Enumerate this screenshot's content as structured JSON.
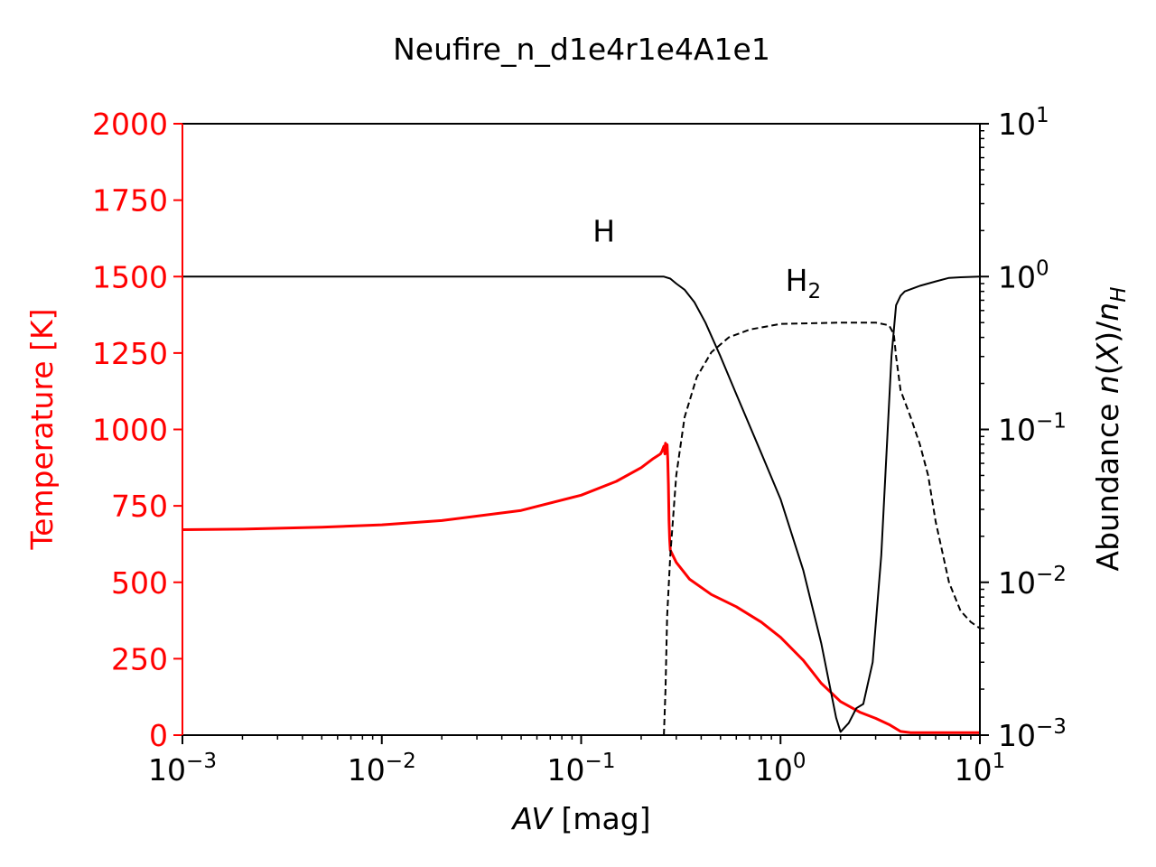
{
  "chart_data": {
    "type": "line",
    "title": "Neufire_n_d1e4r1e4A1e1",
    "xlabel": "AV [mag]",
    "x_scale": "log",
    "xlim": [
      0.001,
      10
    ],
    "x_ticks": [
      "10^-3",
      "10^-2",
      "10^-1",
      "10^0",
      "10^1"
    ],
    "y_left": {
      "label": "Temperature [K]",
      "color": "#ff0000",
      "ylim": [
        0,
        2000
      ],
      "ticks": [
        "0",
        "250",
        "500",
        "750",
        "1000",
        "1250",
        "1500",
        "1750",
        "2000"
      ]
    },
    "y_right": {
      "label": "Abundance n(X)/n_H",
      "scale": "log",
      "ylim": [
        0.001,
        10
      ],
      "ticks": [
        "10^-3",
        "10^-2",
        "10^-1",
        "10^0",
        "10^1"
      ]
    },
    "annotations": [
      {
        "text": "H",
        "x": 0.13,
        "y_right": 2.0
      },
      {
        "text": "H2",
        "x": 1.3,
        "y_right": 0.95
      }
    ],
    "series": [
      {
        "axis": "left",
        "color": "#ff0000",
        "style": "solid",
        "x": [
          0.001,
          0.002,
          0.005,
          0.01,
          0.02,
          0.05,
          0.1,
          0.15,
          0.2,
          0.23,
          0.25,
          0.255,
          0.26,
          0.263,
          0.265,
          0.267,
          0.27,
          0.272,
          0.274,
          0.276,
          0.278,
          0.28,
          0.3,
          0.35,
          0.45,
          0.6,
          0.8,
          1.0,
          1.3,
          1.6,
          2.0,
          2.5,
          3.0,
          3.5,
          4.0,
          4.5,
          5.0,
          7.0,
          10.0
        ],
        "y": [
          672,
          674,
          680,
          688,
          702,
          735,
          785,
          830,
          875,
          905,
          920,
          930,
          945,
          920,
          955,
          930,
          950,
          900,
          820,
          700,
          640,
          605,
          565,
          510,
          460,
          420,
          370,
          320,
          245,
          170,
          110,
          75,
          55,
          35,
          12,
          8,
          8,
          8,
          8
        ]
      },
      {
        "axis": "right",
        "color": "#000000",
        "style": "solid",
        "x": [
          0.001,
          0.01,
          0.1,
          0.2,
          0.26,
          0.28,
          0.3,
          0.33,
          0.37,
          0.42,
          0.5,
          0.6,
          0.8,
          1.0,
          1.3,
          1.6,
          1.9,
          2.0,
          2.2,
          2.4,
          2.6,
          2.9,
          3.2,
          3.4,
          3.6,
          3.8,
          4.0,
          4.2,
          5.0,
          6.0,
          7.0,
          8.0,
          10.0
        ],
        "y": [
          1.0,
          1.0,
          1.0,
          1.0,
          0.999,
          0.97,
          0.9,
          0.82,
          0.68,
          0.5,
          0.3,
          0.17,
          0.07,
          0.035,
          0.012,
          0.004,
          0.0013,
          0.00105,
          0.0012,
          0.0015,
          0.0016,
          0.003,
          0.015,
          0.07,
          0.3,
          0.65,
          0.75,
          0.8,
          0.87,
          0.93,
          0.98,
          0.99,
          1.0
        ]
      },
      {
        "axis": "right",
        "color": "#000000",
        "style": "dashed",
        "x": [
          0.26,
          0.265,
          0.27,
          0.28,
          0.3,
          0.33,
          0.38,
          0.45,
          0.55,
          0.7,
          1.0,
          2.0,
          3.0,
          3.5,
          3.7,
          3.8,
          4.0,
          4.5,
          5.0,
          5.5,
          6.0,
          7.0,
          8.0,
          9.0,
          10.0
        ],
        "y": [
          0.001,
          0.002,
          0.006,
          0.015,
          0.05,
          0.12,
          0.22,
          0.32,
          0.4,
          0.45,
          0.49,
          0.5,
          0.5,
          0.48,
          0.42,
          0.3,
          0.18,
          0.12,
          0.08,
          0.05,
          0.025,
          0.01,
          0.0065,
          0.0055,
          0.005
        ]
      }
    ]
  }
}
